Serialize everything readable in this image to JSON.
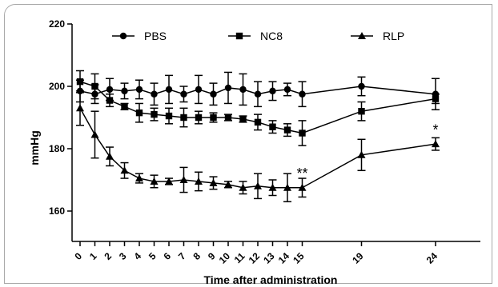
{
  "chart_data": {
    "type": "line",
    "xlabel": "Time after administration",
    "ylabel": "mmHg",
    "ylim": [
      150,
      220
    ],
    "yticks": [
      160,
      180,
      200,
      220
    ],
    "x": [
      0,
      1,
      2,
      3,
      4,
      5,
      6,
      7,
      8,
      9,
      10,
      11,
      12,
      13,
      14,
      15,
      19,
      24
    ],
    "legend_position": "top",
    "grid": false,
    "series": [
      {
        "name": "PBS",
        "marker": "circle",
        "values": [
          198.5,
          197.5,
          199,
          198.5,
          199,
          197.5,
          199,
          197.5,
          199,
          197.5,
          199.5,
          199,
          197.5,
          198.5,
          199,
          197.5,
          200,
          197.5
        ],
        "errors": [
          3.5,
          3,
          3.5,
          2.5,
          3,
          3.5,
          4.5,
          2.5,
          4.5,
          3.5,
          5,
          5,
          4,
          3,
          2,
          4,
          3,
          5
        ]
      },
      {
        "name": "NC8",
        "marker": "square",
        "values": [
          201.5,
          200,
          195.5,
          193.5,
          191.5,
          191,
          190.5,
          190,
          190,
          190,
          190,
          189.5,
          188.5,
          187,
          186,
          185,
          192,
          196
        ],
        "errors": [
          3.5,
          4,
          2,
          1,
          3,
          2,
          2.5,
          3,
          2,
          1.5,
          1,
          1,
          2.5,
          2,
          2,
          4,
          3,
          1.5
        ]
      },
      {
        "name": "RLP",
        "marker": "triangle",
        "values": [
          193,
          184.5,
          177.5,
          173,
          170.5,
          169.5,
          169.5,
          170,
          169.5,
          169,
          168.5,
          167.5,
          168,
          167.5,
          167.5,
          167.5,
          178,
          181.5
        ],
        "errors": [
          5.5,
          7.5,
          3,
          2.5,
          1.5,
          2,
          1,
          4,
          3,
          2,
          1,
          2,
          4,
          2.5,
          4.5,
          3,
          5,
          2
        ]
      }
    ],
    "annotations": [
      {
        "text": "**",
        "x": 15,
        "y": 172
      },
      {
        "text": "*",
        "x": 24,
        "y": 186
      }
    ]
  }
}
